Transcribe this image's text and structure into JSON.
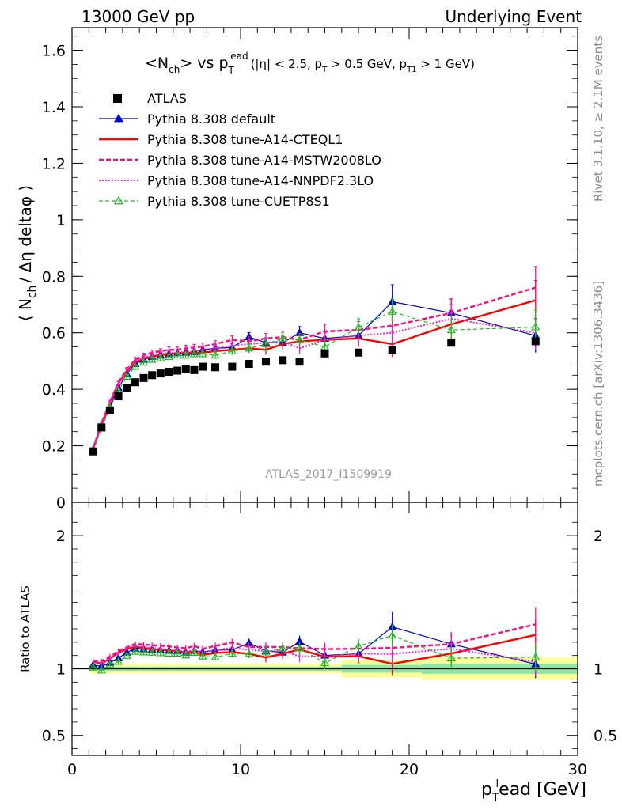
{
  "header": {
    "left": "13000 GeV pp",
    "right": "Underlying Event"
  },
  "side_labels": {
    "rivet": "Rivet 3.1.10, ≥ 2.1M events",
    "mcplots": "mcplots.cern.ch [arXiv:1306.3436]"
  },
  "chart_data": [
    {
      "type": "line",
      "title_main": "<N",
      "title_sub1": "ch",
      "title_mid": "> vs p",
      "title_sup": "lead",
      "title_sub2": "T",
      "title_cuts": "(|η| < 2.5, p",
      "title_cuts2": " > 0.5 GeV, p",
      "title_cuts3": " > 1 GeV)",
      "title_cuts_sub1": "T",
      "title_cuts_sub2": "T1",
      "watermark": "ATLAS_2017_I1509919",
      "ylabel": "⟨ N",
      "ylabel_sub": "ch",
      "ylabel_rest": "/ Δη deltaφ ⟩",
      "xlim": [
        0,
        30
      ],
      "ylim": [
        0,
        1.68
      ],
      "yticks": [
        {
          "v": 0,
          "label": "0"
        },
        {
          "v": 0.2,
          "label": "0.2"
        },
        {
          "v": 0.4,
          "label": "0.4"
        },
        {
          "v": 0.6,
          "label": "0.6"
        },
        {
          "v": 0.8,
          "label": "0.8"
        },
        {
          "v": 1.0,
          "label": "1"
        },
        {
          "v": 1.2,
          "label": "1.2"
        },
        {
          "v": 1.4,
          "label": "1.4"
        },
        {
          "v": 1.6,
          "label": "1.6"
        }
      ],
      "legend_placement": "top-left",
      "data": {
        "name": "ATLAS",
        "x": [
          1.25,
          1.75,
          2.25,
          2.75,
          3.25,
          3.75,
          4.25,
          4.75,
          5.25,
          5.75,
          6.25,
          6.75,
          7.25,
          7.75,
          8.5,
          9.5,
          10.5,
          11.5,
          12.5,
          13.5,
          15,
          17,
          19,
          22.5,
          27.5
        ],
        "y": [
          0.18,
          0.265,
          0.325,
          0.375,
          0.405,
          0.425,
          0.44,
          0.45,
          0.456,
          0.462,
          0.466,
          0.472,
          0.468,
          0.48,
          0.478,
          0.48,
          0.49,
          0.498,
          0.503,
          0.498,
          0.527,
          0.53,
          0.54,
          0.565,
          0.57
        ]
      },
      "series": [
        {
          "name": "Pythia 8.308 default",
          "color": "#0000cc",
          "x": [
            1.25,
            1.75,
            2.25,
            2.75,
            3.25,
            3.75,
            4.25,
            4.75,
            5.25,
            5.75,
            6.25,
            6.75,
            7.25,
            7.75,
            8.5,
            9.5,
            10.5,
            11.5,
            12.5,
            13.5,
            15,
            17,
            19,
            22.5,
            27.5
          ],
          "y": [
            0.185,
            0.27,
            0.34,
            0.405,
            0.455,
            0.49,
            0.505,
            0.515,
            0.52,
            0.525,
            0.528,
            0.53,
            0.532,
            0.54,
            0.545,
            0.548,
            0.585,
            0.565,
            0.565,
            0.6,
            0.58,
            0.59,
            0.71,
            0.67,
            0.59
          ],
          "yerr": [
            0.004,
            0.005,
            0.006,
            0.007,
            0.007,
            0.008,
            0.008,
            0.009,
            0.009,
            0.01,
            0.01,
            0.011,
            0.011,
            0.012,
            0.012,
            0.014,
            0.016,
            0.018,
            0.02,
            0.022,
            0.025,
            0.03,
            0.06,
            0.05,
            0.06
          ]
        },
        {
          "name": "Pythia 8.308 tune-A14-CTEQL1",
          "color": "#ff0000",
          "x": [
            1.25,
            1.75,
            2.25,
            2.75,
            3.25,
            3.75,
            4.25,
            4.75,
            5.25,
            5.75,
            6.25,
            6.75,
            7.25,
            7.75,
            8.5,
            9.5,
            10.5,
            11.5,
            12.5,
            13.5,
            15,
            17,
            19,
            22.5,
            27.5
          ],
          "y": [
            0.19,
            0.275,
            0.35,
            0.42,
            0.465,
            0.495,
            0.51,
            0.515,
            0.522,
            0.525,
            0.528,
            0.53,
            0.528,
            0.53,
            0.535,
            0.54,
            0.545,
            0.54,
            0.56,
            0.57,
            0.575,
            0.58,
            0.56,
            0.63,
            0.715
          ],
          "yerr": [
            0.004,
            0.005,
            0.006,
            0.007,
            0.007,
            0.008,
            0.008,
            0.009,
            0.009,
            0.01,
            0.01,
            0.011,
            0.011,
            0.012,
            0.012,
            0.014,
            0.016,
            0.018,
            0.02,
            0.022,
            0.025,
            0.03,
            0.045,
            0.05,
            0.07
          ]
        },
        {
          "name": "Pythia 8.308 tune-A14-MSTW2008LO",
          "color": "#ff0a7a",
          "x": [
            1.25,
            1.75,
            2.25,
            2.75,
            3.25,
            3.75,
            4.25,
            4.75,
            5.25,
            5.75,
            6.25,
            6.75,
            7.25,
            7.75,
            8.5,
            9.5,
            10.5,
            11.5,
            12.5,
            13.5,
            15,
            17,
            19,
            22.5,
            27.5
          ],
          "y": [
            0.19,
            0.28,
            0.355,
            0.425,
            0.47,
            0.505,
            0.52,
            0.53,
            0.535,
            0.54,
            0.54,
            0.545,
            0.548,
            0.552,
            0.56,
            0.575,
            0.57,
            0.58,
            0.585,
            0.575,
            0.605,
            0.61,
            0.625,
            0.67,
            0.76
          ],
          "yerr": [
            0.004,
            0.005,
            0.006,
            0.007,
            0.007,
            0.008,
            0.008,
            0.009,
            0.009,
            0.01,
            0.01,
            0.011,
            0.011,
            0.012,
            0.012,
            0.014,
            0.016,
            0.018,
            0.02,
            0.022,
            0.025,
            0.03,
            0.045,
            0.05,
            0.075
          ]
        },
        {
          "name": "Pythia 8.308 tune-A14-NNPDF2.3LO",
          "color": "#ee22cc",
          "x": [
            1.25,
            1.75,
            2.25,
            2.75,
            3.25,
            3.75,
            4.25,
            4.75,
            5.25,
            5.75,
            6.25,
            6.75,
            7.25,
            7.75,
            8.5,
            9.5,
            10.5,
            11.5,
            12.5,
            13.5,
            15,
            17,
            19,
            22.5,
            27.5
          ],
          "y": [
            0.188,
            0.275,
            0.35,
            0.42,
            0.468,
            0.498,
            0.512,
            0.52,
            0.525,
            0.528,
            0.53,
            0.532,
            0.535,
            0.54,
            0.545,
            0.555,
            0.56,
            0.565,
            0.57,
            0.545,
            0.575,
            0.59,
            0.6,
            0.65,
            0.6
          ],
          "yerr": [
            0.004,
            0.005,
            0.006,
            0.007,
            0.007,
            0.008,
            0.008,
            0.009,
            0.009,
            0.01,
            0.01,
            0.011,
            0.011,
            0.012,
            0.012,
            0.014,
            0.016,
            0.018,
            0.02,
            0.022,
            0.025,
            0.03,
            0.045,
            0.05,
            0.06
          ]
        },
        {
          "name": "Pythia 8.308 tune-CUETP8S1",
          "color": "#22bb22",
          "x": [
            1.25,
            1.75,
            2.25,
            2.75,
            3.25,
            3.75,
            4.25,
            4.75,
            5.25,
            5.75,
            6.25,
            6.75,
            7.25,
            7.75,
            8.5,
            9.5,
            10.5,
            11.5,
            12.5,
            13.5,
            15,
            17,
            19,
            22.5,
            27.5
          ],
          "y": [
            0.182,
            0.262,
            0.335,
            0.395,
            0.445,
            0.48,
            0.495,
            0.505,
            0.51,
            0.515,
            0.52,
            0.52,
            0.525,
            0.525,
            0.52,
            0.535,
            0.545,
            0.56,
            0.58,
            0.575,
            0.55,
            0.62,
            0.675,
            0.61,
            0.62
          ],
          "yerr": [
            0.004,
            0.005,
            0.006,
            0.007,
            0.007,
            0.008,
            0.008,
            0.009,
            0.009,
            0.01,
            0.01,
            0.011,
            0.011,
            0.012,
            0.012,
            0.014,
            0.016,
            0.018,
            0.02,
            0.022,
            0.025,
            0.03,
            0.045,
            0.05,
            0.06
          ]
        }
      ]
    },
    {
      "type": "line",
      "ylabel": "Ratio to ATLAS",
      "xlabel_main": "p",
      "xlabel_sub": "T",
      "xlabel_sup": "l",
      "xlabel_rest": "ead [GeV]",
      "xlim": [
        0,
        30
      ],
      "ylim": [
        0.35,
        2.25
      ],
      "xticks": [
        {
          "v": 0,
          "label": "0"
        },
        {
          "v": 10,
          "label": "10"
        },
        {
          "v": 20,
          "label": "20"
        },
        {
          "v": 30,
          "label": "30"
        }
      ],
      "yticks": [
        {
          "v": 0.5,
          "label": "0.5"
        },
        {
          "v": 1,
          "label": "1"
        },
        {
          "v": 2,
          "label": "2"
        }
      ]
    }
  ]
}
